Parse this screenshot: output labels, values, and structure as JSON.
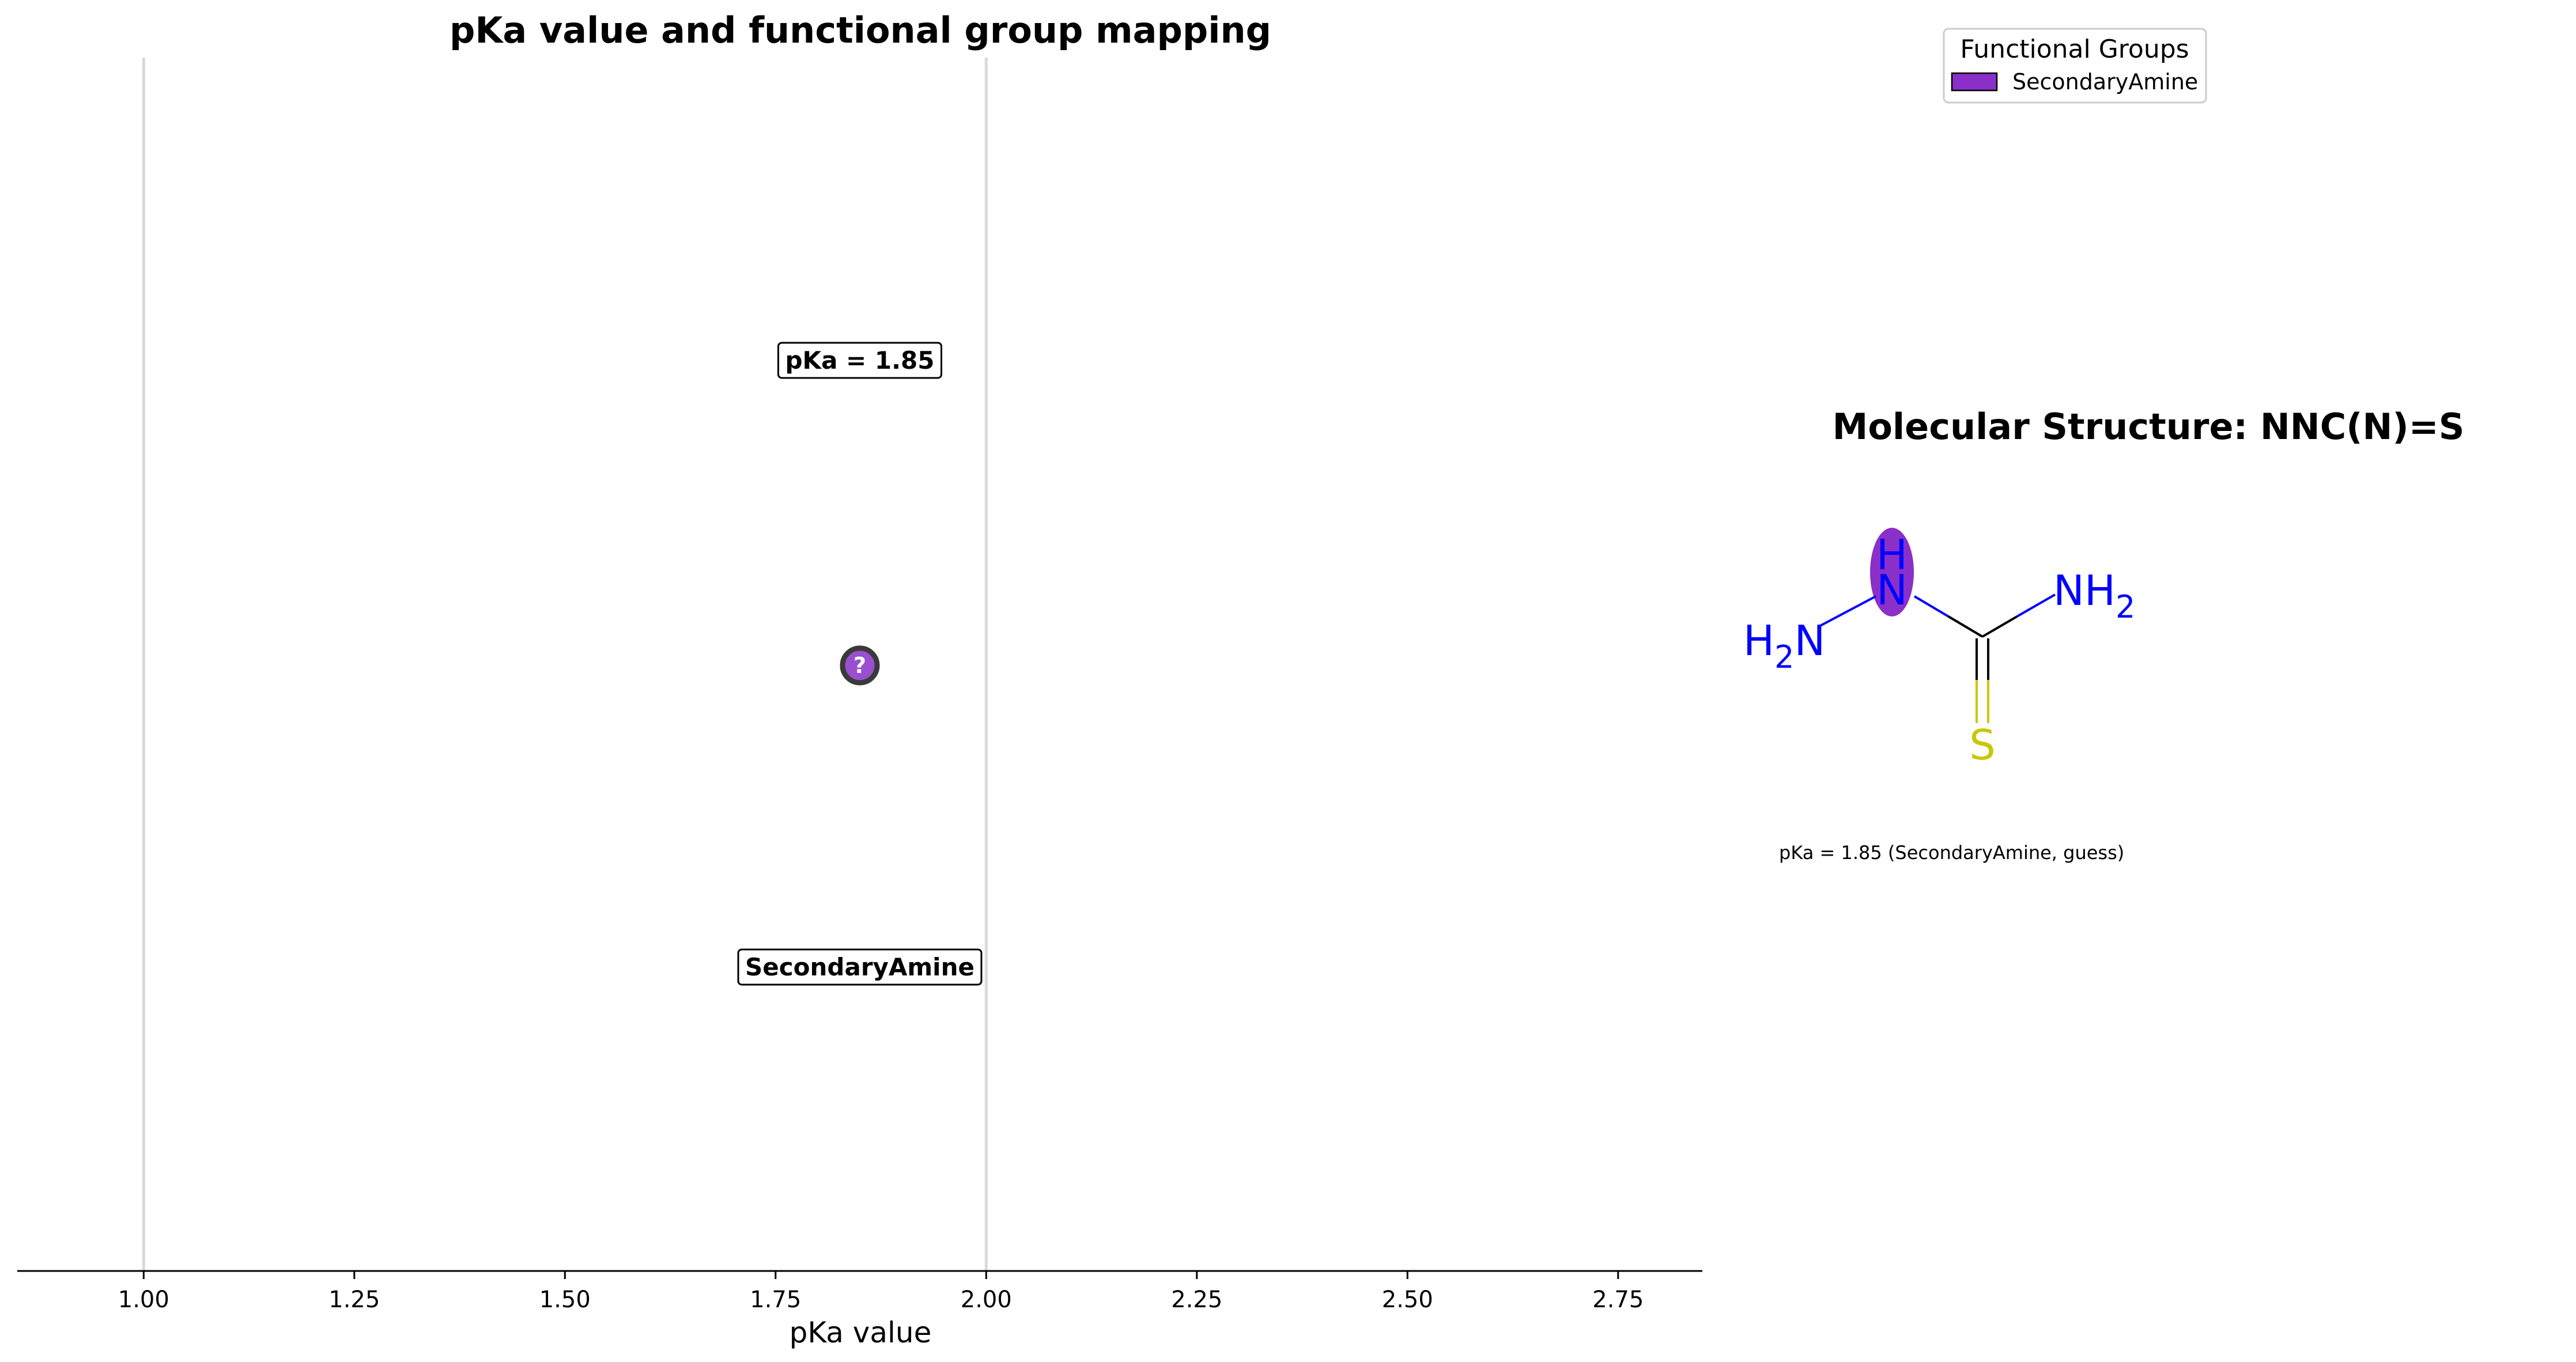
{
  "chart_data": {
    "type": "scatter",
    "title": "pKa value and functional group mapping",
    "xlabel": "pKa value",
    "ylabel": "",
    "xlim": [
      0.85,
      2.85
    ],
    "xticks": [
      1.0,
      1.25,
      1.5,
      1.75,
      2.0,
      2.25,
      2.5,
      2.75
    ],
    "xtick_labels": [
      "1.00",
      "1.25",
      "1.50",
      "1.75",
      "2.00",
      "2.25",
      "2.50",
      "2.75"
    ],
    "vlines": [
      1.0,
      2.0
    ],
    "grid": false,
    "points": [
      {
        "x": 1.85,
        "marker_label": "?",
        "group": "SecondaryAmine",
        "value_label": "pKa = 1.85",
        "group_label": "SecondaryAmine",
        "color": "#9a4fd0"
      }
    ],
    "legend": {
      "title": "Functional Groups",
      "placement": "top-right",
      "entries": [
        {
          "label": "SecondaryAmine",
          "color": "#8b2fc9"
        }
      ]
    }
  },
  "molecule": {
    "title": "Molecular Structure: NNC(N)=S",
    "caption": "pKa = 1.85 (SecondaryAmine, guess)",
    "atoms": {
      "h2n_main": "H",
      "h2n_sub": "2",
      "h2n_n": "N",
      "nh_h": "H",
      "nh_n": "N",
      "nh2_n": "NH",
      "nh2_sub": "2",
      "s": "S"
    },
    "colors": {
      "nitrogen": "#0000ff",
      "sulfur": "#c8c800",
      "bond": "#000000",
      "highlight": "#8b2fc9"
    }
  },
  "colors": {
    "vline": "#d9d9d9",
    "axis": "#000000",
    "marker_fill": "#9a4fd0",
    "marker_edge": "#3a3a3a"
  }
}
